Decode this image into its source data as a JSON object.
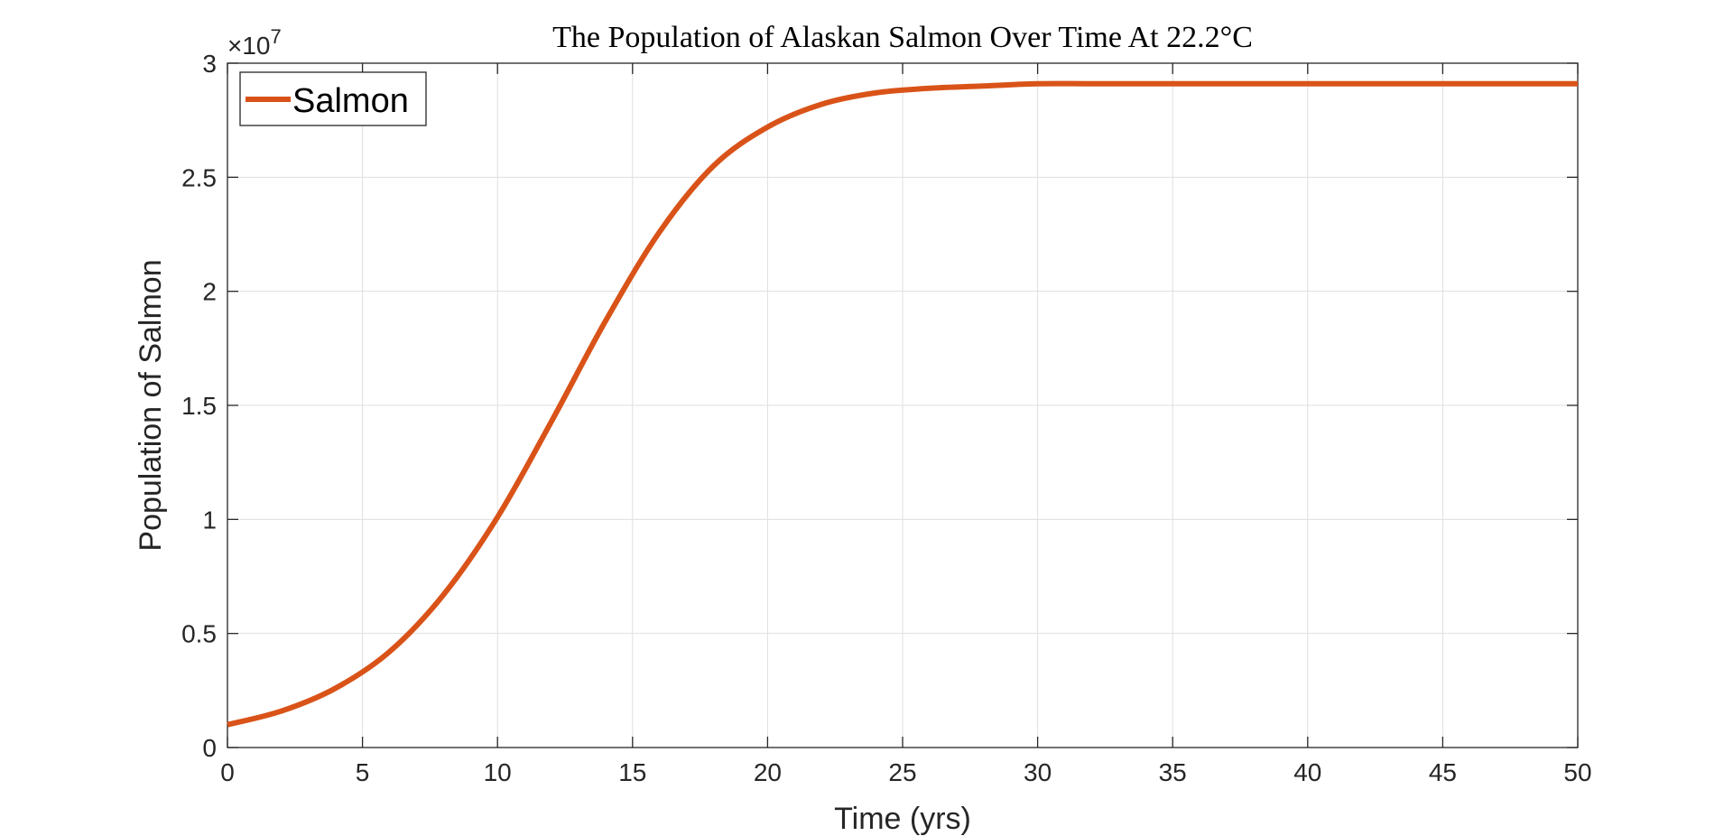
{
  "chart_data": {
    "type": "line",
    "title": "The Population of Alaskan Salmon Over Time At 22.2°C",
    "xlabel": "Time (yrs)",
    "ylabel": "Population of Salmon",
    "y_multiplier_base": "×10",
    "y_multiplier_exponent": "7",
    "xlim": [
      0,
      50
    ],
    "ylim": [
      0,
      3
    ],
    "xticks": [
      "0",
      "5",
      "10",
      "15",
      "20",
      "25",
      "30",
      "35",
      "40",
      "45",
      "50"
    ],
    "yticks": [
      "0",
      "0.5",
      "1",
      "1.5",
      "2",
      "2.5",
      "3"
    ],
    "grid": true,
    "legend_position": "top-left",
    "series": [
      {
        "name": "Salmon",
        "color": "#D95319",
        "x": [
          0,
          2,
          4,
          6,
          8,
          10,
          12,
          14,
          16,
          18,
          20,
          22,
          24,
          26,
          28,
          30,
          32,
          34,
          36,
          38,
          40,
          42,
          44,
          46,
          48,
          50
        ],
        "y": [
          0.1,
          0.16,
          0.26,
          0.42,
          0.67,
          1.01,
          1.43,
          1.87,
          2.26,
          2.55,
          2.72,
          2.82,
          2.87,
          2.89,
          2.9,
          2.91,
          2.91,
          2.91,
          2.91,
          2.91,
          2.91,
          2.91,
          2.91,
          2.91,
          2.91,
          2.91
        ]
      }
    ]
  }
}
